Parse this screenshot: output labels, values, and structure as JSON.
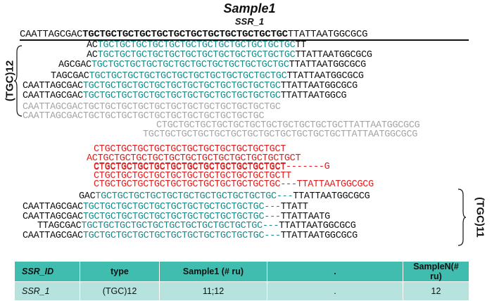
{
  "title": "Sample1",
  "ssr_name": "SSR_1",
  "reference": {
    "flank_left": "CAATTAGCGAC",
    "repeat": "TGCTGCTGCTGCTGCTGCTGCTGCTGCTGCTGCTGC",
    "flank_right": "TTATTAATGGCGCG"
  },
  "allele1_label": "(TGC)12",
  "allele2_label": "(TGC)11",
  "allele1_reads": [
    {
      "left": "AC",
      "repeat": "TGCTGCTGCTGCTGCTGCTGCTGCTGCTGCTGCTGC",
      "right": "TT"
    },
    {
      "left": "AC",
      "repeat": "TGCTGCTGCTGCTGCTGCTGCTGCTGCTGCTGCTGC",
      "right": "TTATTAATGGCGCG"
    },
    {
      "left": "AGCGAC",
      "repeat": "TGCTGCTGCTGCTGCTGCTGCTGCTGCTGCTGCTGC",
      "right": "TTATTAATGGCGCG"
    },
    {
      "left": "TAGCGAC",
      "repeat": "TGCTGCTGCTGCTGCTGCTGCTGCTGCTGCTGCTGC",
      "right": "TTATTAATGGCGCG"
    },
    {
      "left": "CAATTAGCGAC",
      "repeat": "TGCTGCTGCTGCTGCTGCTGCTGCTGCTGCTGCTGC",
      "right": "TTATTAATGGCGCG"
    },
    {
      "left": "CAATTAGCGAC",
      "repeat": "TGCTGCTGCTGCTGCTGCTGCTGCTGCTGCTGCTGC",
      "right": "TTATTAATGGCG"
    }
  ],
  "grey_reads": [
    "CAATTAGCGACTGCTGCTGCTGCTGCTGCTGCTGCTGCTGCTGCTGC",
    "CAATTAGCGACTGCTGCTGCTGCTGCTGCTGCTGCTGCTGCTGC",
    "CTGCTGCTGCTGCTGCTGCTGCTGCTGCTGCTGCTTATTAATGGCGCG",
    "TGCTGCTGCTGCTGCTGCTGCTGCTGCTGCTGCTGCTTATTAATGGCGCG"
  ],
  "red_reads": [
    "CTGCTGCTGCTGCTGCTGCTGCTGCTGCTGCTGCT",
    "ACTGCTGCTGCTGCTGCTGCTGCTGCTGCTGCTGCTGCT",
    "CTGCTGCTGCTGCTGCTGCTGCTGCTGCTGCTGCT",
    "CTGCTGCTGCTGCTGCTGCTGCTGCTGCTGCTGCT-------G",
    "CTGCTGCTGCTGCTGCTGCTGCTGCTGCTGCTGCTT",
    "CTGCTGCTGCTGCTGCTGCTGCTGCTGCTGCTGC---TTATTAATGGCGCG"
  ],
  "allele2_reads": [
    {
      "left": "GAC",
      "repeat": "TGCTGCTGCTGCTGCTGCTGCTGCTGCTGCTGC---",
      "right": "TTATTAATGGCGCG"
    },
    {
      "left": "CAATTAGCGAC",
      "repeat": "TGCTGCTGCTGCTGCTGCTGCTGCTGCTGCTGC---",
      "right": "TTATT"
    },
    {
      "left": "CAATTAGCGAC",
      "repeat": "TGCTGCTGCTGCTGCTGCTGCTGCTGCTGCTGC---",
      "right": "TTATTAATG"
    },
    {
      "left": "TTAGCGAC",
      "repeat": "TGCTGCTGCTGCTGCTGCTGCTGCTGCTGCTGC---",
      "right": "TTATTAATGGCGCG"
    },
    {
      "left": "CAATTAGCGAC",
      "repeat": "TGCTGCTGCTGCTGCTGCTGCTGCTGCTGCTGC---",
      "right": "TTATTAATGGCGCG"
    }
  ],
  "table": {
    "headers": [
      "SSR_ID",
      "type",
      "Sample1 (# ru)",
      ".",
      "SampleN(# ru)"
    ],
    "row": [
      "SSR_1",
      "(TGC)12",
      "11;12",
      ".",
      "12"
    ]
  },
  "colors": {
    "repeat": "#1a8c8c",
    "flank": "#111111",
    "filtered": "#a6a6a6",
    "error": "#e02020",
    "header_bg": "#41bdb0",
    "row_bg": "#b6e3de"
  }
}
